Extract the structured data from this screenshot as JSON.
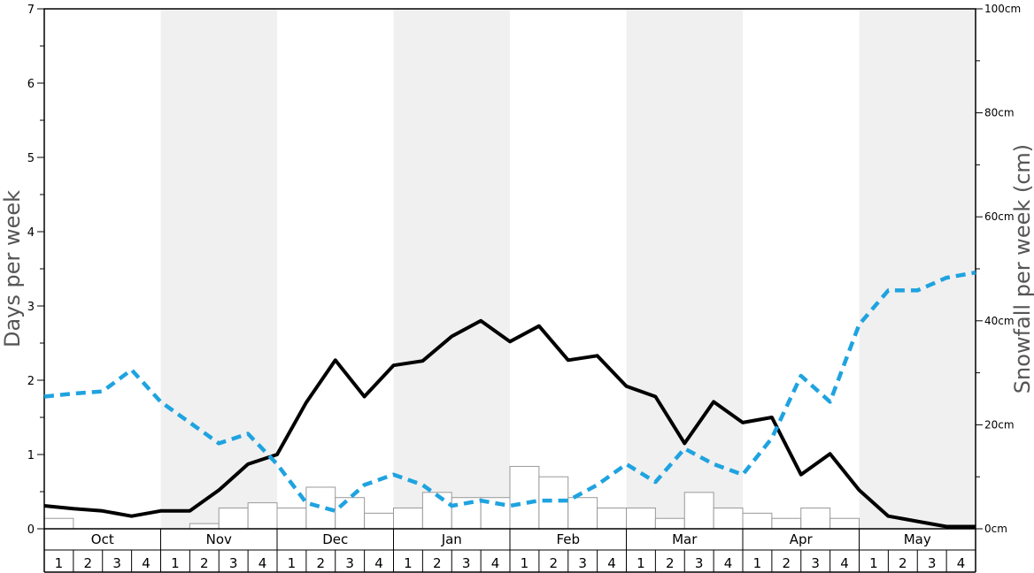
{
  "chart_data": {
    "type": "bar+line",
    "ylabel_left": "Days per week",
    "ylabel_right": "Snowfall per week (cm)",
    "ylim_left": [
      0,
      7
    ],
    "ylim_right": [
      0,
      100
    ],
    "yticks_left": [
      "0",
      "1",
      "2",
      "3",
      "4",
      "5",
      "6",
      "7"
    ],
    "yticks_right": [
      "0cm",
      "20cm",
      "40cm",
      "60cm",
      "80cm",
      "100cm"
    ],
    "months": [
      "Oct",
      "Nov",
      "Dec",
      "Jan",
      "Feb",
      "Mar",
      "Apr",
      "May"
    ],
    "weeks": [
      "1",
      "2",
      "3",
      "4"
    ],
    "shaded_months": [
      "Nov",
      "Jan",
      "Mar",
      "May"
    ],
    "colors": {
      "shade": "#f0f0f0",
      "solid_line": "#000000",
      "dashed_line": "#1fa3e0",
      "bar_fill": "#ffffff",
      "bar_stroke": "#999999"
    },
    "series": [
      {
        "style": "bars",
        "axis": "right",
        "values": [
          2,
          0,
          0,
          0,
          0,
          1,
          4,
          5,
          4,
          8,
          6,
          3,
          4,
          7,
          6,
          6,
          12,
          10,
          6,
          4,
          4,
          2,
          7,
          4,
          3,
          2,
          4,
          2,
          0,
          0,
          0,
          0
        ]
      },
      {
        "style": "solid",
        "axis": "left",
        "values": [
          0.31,
          0.27,
          0.24,
          0.17,
          0.24,
          0.24,
          0.52,
          0.87,
          1.0,
          1.7,
          2.27,
          1.78,
          2.2,
          2.26,
          2.59,
          2.8,
          2.52,
          2.73,
          2.27,
          2.33,
          1.92,
          1.78,
          1.15,
          1.71,
          1.43,
          1.5,
          0.73,
          1.01,
          0.52,
          0.17,
          0.1,
          0.03,
          0.03
        ]
      },
      {
        "style": "dashed",
        "axis": "left",
        "values": [
          1.78,
          1.82,
          1.85,
          2.14,
          1.71,
          1.43,
          1.15,
          1.28,
          0.87,
          0.35,
          0.24,
          0.59,
          0.73,
          0.59,
          0.31,
          0.38,
          0.31,
          0.38,
          0.38,
          0.59,
          0.87,
          0.63,
          1.08,
          0.87,
          0.73,
          1.22,
          2.06,
          1.71,
          2.75,
          3.21,
          3.21,
          3.38,
          3.45
        ]
      }
    ]
  }
}
